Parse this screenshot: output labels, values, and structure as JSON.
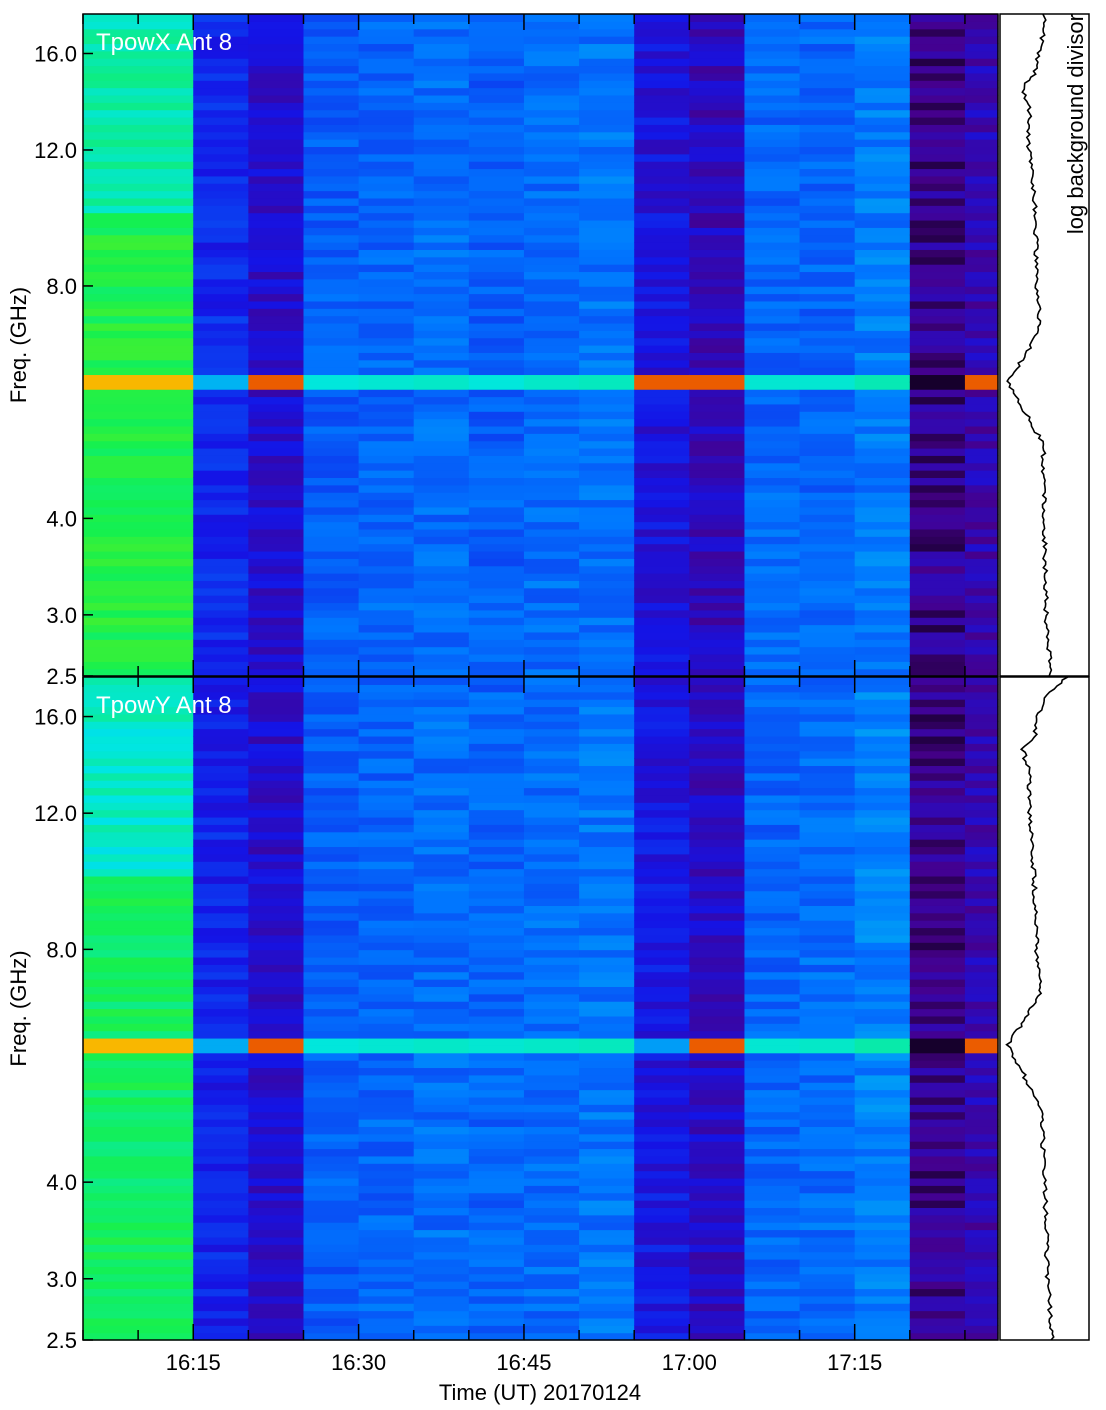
{
  "figure": {
    "time_axis_label": "Time (UT) 20170124",
    "side_panel_label": "log background divisor"
  },
  "chart_data": [
    {
      "type": "heatmap",
      "title": "TpowX Ant 8",
      "ylabel": "Freq. (GHz)",
      "xlabel": "",
      "y_scale": "log",
      "ylim": [
        2.5,
        18.0
      ],
      "yticks": [
        {
          "value": 2.5,
          "label": "2.5"
        },
        {
          "value": 3.0,
          "label": "3.0"
        },
        {
          "value": 4.0,
          "label": "4.0"
        },
        {
          "value": 8.0,
          "label": "8.0"
        },
        {
          "value": 12.0,
          "label": "12.0"
        },
        {
          "value": 16.0,
          "label": "16.0"
        }
      ],
      "xlim": [
        "16:05",
        "17:28"
      ],
      "xticks": [
        "16:15",
        "16:30",
        "16:45",
        "17:00",
        "17:15"
      ],
      "colormap": "blue-cyan-green-yellow-red (black = low)",
      "scan_columns": [
        {
          "start": "16:05",
          "end": "16:15",
          "level": 0.55
        },
        {
          "start": "16:15",
          "end": "16:20",
          "level": 0.18
        },
        {
          "start": "16:20",
          "end": "16:25",
          "level": 0.12
        },
        {
          "start": "16:25",
          "end": "16:30",
          "level": 0.26
        },
        {
          "start": "16:30",
          "end": "16:35",
          "level": 0.27
        },
        {
          "start": "16:35",
          "end": "16:40",
          "level": 0.28
        },
        {
          "start": "16:40",
          "end": "16:45",
          "level": 0.26
        },
        {
          "start": "16:45",
          "end": "16:50",
          "level": 0.28
        },
        {
          "start": "16:50",
          "end": "16:55",
          "level": 0.29
        },
        {
          "start": "16:55",
          "end": "17:00",
          "level": 0.14
        },
        {
          "start": "17:00",
          "end": "17:05",
          "level": 0.1
        },
        {
          "start": "17:05",
          "end": "17:10",
          "level": 0.27
        },
        {
          "start": "17:10",
          "end": "17:15",
          "level": 0.27
        },
        {
          "start": "17:15",
          "end": "17:20",
          "level": 0.3
        },
        {
          "start": "17:20",
          "end": "17:25",
          "level": 0.06
        },
        {
          "start": "17:25",
          "end": "17:28",
          "level": 0.09
        }
      ],
      "rfi_band_GHz": 6.0,
      "background_divisor_profile": [
        [
          2.5,
          0.58
        ],
        [
          3.0,
          0.52
        ],
        [
          4.0,
          0.5
        ],
        [
          5.0,
          0.48
        ],
        [
          6.0,
          0.02
        ],
        [
          7.0,
          0.44
        ],
        [
          8.0,
          0.4
        ],
        [
          10.0,
          0.38
        ],
        [
          12.0,
          0.3
        ],
        [
          13.5,
          0.3
        ],
        [
          14.5,
          0.22
        ],
        [
          15.0,
          0.36
        ],
        [
          16.0,
          0.42
        ],
        [
          17.0,
          0.48
        ],
        [
          18.0,
          0.5
        ]
      ]
    },
    {
      "type": "heatmap",
      "title": "TpowY Ant 8",
      "ylabel": "Freq. (GHz)",
      "xlabel": "Time (UT) 20170124",
      "y_scale": "log",
      "ylim": [
        2.5,
        18.0
      ],
      "yticks": [
        {
          "value": 2.5,
          "label": "2.5"
        },
        {
          "value": 3.0,
          "label": "3.0"
        },
        {
          "value": 4.0,
          "label": "4.0"
        },
        {
          "value": 8.0,
          "label": "8.0"
        },
        {
          "value": 12.0,
          "label": "12.0"
        },
        {
          "value": 16.0,
          "label": "16.0"
        }
      ],
      "xlim": [
        "16:05",
        "17:28"
      ],
      "xticks": [
        "16:15",
        "16:30",
        "16:45",
        "17:00",
        "17:15"
      ],
      "colormap": "blue-cyan-green-yellow-red (black = low)",
      "scan_columns": [
        {
          "start": "16:05",
          "end": "16:15",
          "level": 0.52
        },
        {
          "start": "16:15",
          "end": "16:20",
          "level": 0.17
        },
        {
          "start": "16:20",
          "end": "16:25",
          "level": 0.12
        },
        {
          "start": "16:25",
          "end": "16:30",
          "level": 0.26
        },
        {
          "start": "16:30",
          "end": "16:35",
          "level": 0.27
        },
        {
          "start": "16:35",
          "end": "16:40",
          "level": 0.28
        },
        {
          "start": "16:40",
          "end": "16:45",
          "level": 0.27
        },
        {
          "start": "16:45",
          "end": "16:50",
          "level": 0.28
        },
        {
          "start": "16:50",
          "end": "16:55",
          "level": 0.29
        },
        {
          "start": "16:55",
          "end": "17:00",
          "level": 0.15
        },
        {
          "start": "17:00",
          "end": "17:05",
          "level": 0.11
        },
        {
          "start": "17:05",
          "end": "17:10",
          "level": 0.27
        },
        {
          "start": "17:10",
          "end": "17:15",
          "level": 0.28
        },
        {
          "start": "17:15",
          "end": "17:20",
          "level": 0.31
        },
        {
          "start": "17:20",
          "end": "17:25",
          "level": 0.06
        },
        {
          "start": "17:25",
          "end": "17:28",
          "level": 0.09
        }
      ],
      "rfi_band_GHz": 6.0,
      "background_divisor_profile": [
        [
          2.5,
          0.6
        ],
        [
          3.0,
          0.54
        ],
        [
          4.0,
          0.5
        ],
        [
          5.0,
          0.46
        ],
        [
          6.0,
          0.02
        ],
        [
          7.0,
          0.44
        ],
        [
          8.0,
          0.4
        ],
        [
          10.0,
          0.36
        ],
        [
          12.0,
          0.3
        ],
        [
          13.5,
          0.3
        ],
        [
          14.5,
          0.22
        ],
        [
          15.0,
          0.36
        ],
        [
          16.0,
          0.42
        ],
        [
          17.0,
          0.5
        ],
        [
          18.0,
          0.8
        ]
      ]
    }
  ]
}
